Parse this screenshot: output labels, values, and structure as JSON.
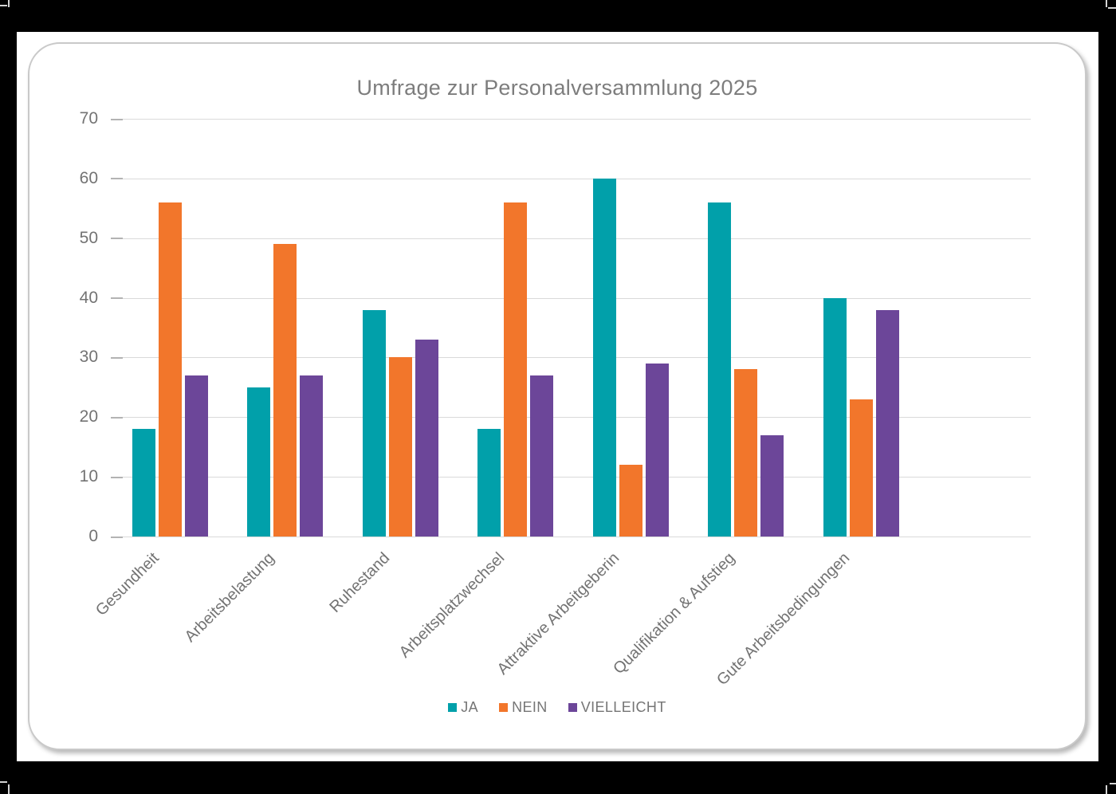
{
  "page": {
    "frame_background": "#000000",
    "page_background": "#ffffff",
    "card_border_color": "#c9c9c9"
  },
  "chart_data": {
    "type": "bar",
    "title": "Umfrage zur Personalversammlung 2025",
    "categories": [
      "Gesundheit",
      "Arbeitsbelastung",
      "Ruhestand",
      "Arbeitsplatzwechsel",
      "Attraktive Arbeitgeberin",
      "Qualifikation & Aufstieg",
      "Gute Arbeitsbedingungen"
    ],
    "series": [
      {
        "name": "JA",
        "color": "#01A0AA",
        "values": [
          18,
          25,
          38,
          18,
          60,
          56,
          40
        ]
      },
      {
        "name": "NEIN",
        "color": "#F2762B",
        "values": [
          56,
          49,
          30,
          56,
          12,
          28,
          23
        ]
      },
      {
        "name": "VIELLEICHT",
        "color": "#6C4699",
        "values": [
          27,
          27,
          33,
          27,
          29,
          17,
          38
        ]
      }
    ],
    "xlabel": "",
    "ylabel": "",
    "ylim": [
      0,
      70
    ],
    "ytick_step": 10,
    "yticks": [
      0,
      10,
      20,
      30,
      40,
      50,
      60,
      70
    ],
    "grid": true,
    "legend_position": "bottom",
    "colors": {
      "title_text": "#7d7d7d",
      "axis_text": "#737373",
      "gridline": "#dadada",
      "tick": "#b3b3b3"
    }
  }
}
